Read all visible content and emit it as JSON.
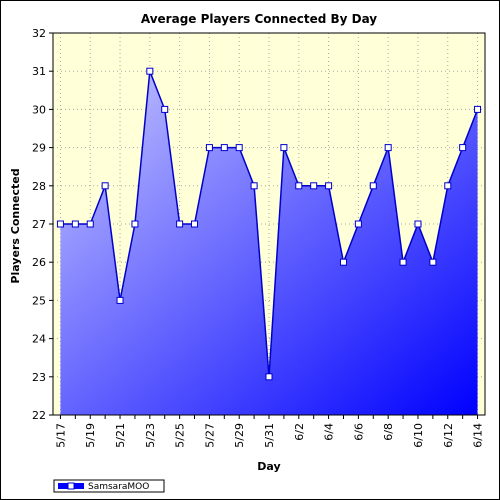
{
  "chart_data": {
    "type": "area",
    "title": "Average Players Connected By Day",
    "xlabel": "Day",
    "ylabel": "Players Connected",
    "ylim": [
      22,
      32
    ],
    "yticks": [
      22,
      23,
      24,
      25,
      26,
      27,
      28,
      29,
      30,
      31,
      32
    ],
    "grid": true,
    "legend": "bottom-left",
    "x": [
      "5/17",
      "5/18",
      "5/19",
      "5/20",
      "5/21",
      "5/22",
      "5/23",
      "5/24",
      "5/25",
      "5/26",
      "5/27",
      "5/28",
      "5/29",
      "5/30",
      "5/31",
      "6/1",
      "6/2",
      "6/3",
      "6/4",
      "6/5",
      "6/6",
      "6/7",
      "6/8",
      "6/9",
      "6/10",
      "6/11",
      "6/12",
      "6/13",
      "6/14"
    ],
    "xtick_labels": [
      "5/17",
      "5/19",
      "5/21",
      "5/23",
      "5/25",
      "5/27",
      "5/29",
      "5/31",
      "6/2",
      "6/4",
      "6/6",
      "6/8",
      "6/10",
      "6/12",
      "6/14"
    ],
    "series": [
      {
        "name": "SamsaraMOO",
        "values": [
          27,
          27,
          27,
          28,
          25,
          27,
          31,
          30,
          27,
          27,
          29,
          29,
          29,
          28,
          23,
          29,
          28,
          28,
          28,
          26,
          27,
          28,
          29,
          26,
          27,
          26,
          28,
          29,
          30
        ]
      }
    ],
    "colors": {
      "plot_background": "#ffffd8",
      "line": "#0000cc",
      "fill_light": "#c8c8ff",
      "fill_dark": "#0000ff",
      "marker_fill": "#ffffff"
    }
  }
}
